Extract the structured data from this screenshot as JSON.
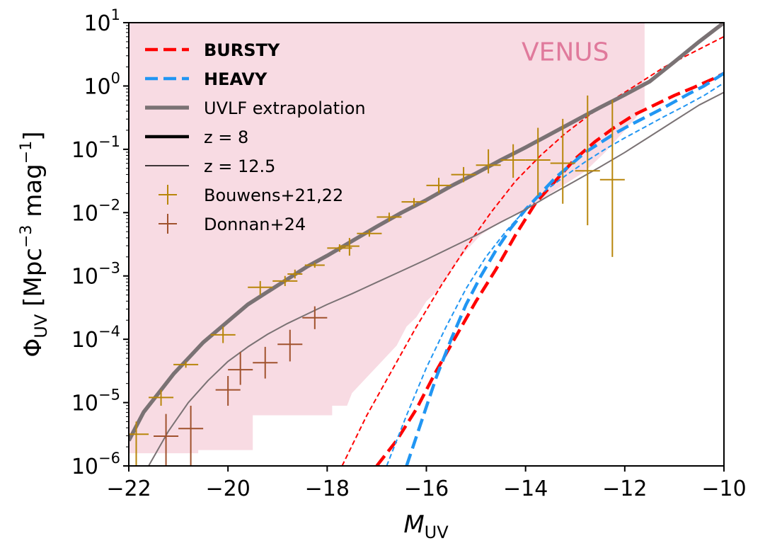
{
  "chart_data": {
    "type": "line",
    "xlabel": "M",
    "xlabel_sub": "UV",
    "ylabel": {
      "prefix": "Φ",
      "prefix_sub": "UV",
      "open": " [Mpc",
      "exp1": "−3",
      "mid": " mag",
      "exp2": "−1",
      "close": "]"
    },
    "xlim": [
      -22,
      -10
    ],
    "ylim_log10": [
      -6,
      1
    ],
    "x_ticks": [
      {
        "value": -22,
        "label": "−22"
      },
      {
        "value": -20,
        "label": "−20"
      },
      {
        "value": -18,
        "label": "−18"
      },
      {
        "value": -16,
        "label": "−16"
      },
      {
        "value": -14,
        "label": "−14"
      },
      {
        "value": -12,
        "label": "−12"
      },
      {
        "value": -10,
        "label": "−10"
      }
    ],
    "y_ticks": [
      {
        "exp": 1,
        "base": "10",
        "sup": "1"
      },
      {
        "exp": 0,
        "base": "10",
        "sup": "0"
      },
      {
        "exp": -1,
        "base": "10",
        "sup": "−1"
      },
      {
        "exp": -2,
        "base": "10",
        "sup": "−2"
      },
      {
        "exp": -3,
        "base": "10",
        "sup": "−3"
      },
      {
        "exp": -4,
        "base": "10",
        "sup": "−4"
      },
      {
        "exp": -5,
        "base": "10",
        "sup": "−5"
      },
      {
        "exp": -6,
        "base": "10",
        "sup": "−6"
      }
    ],
    "annotation": {
      "text": "VENUS",
      "color": "#e07a9c"
    },
    "venus_region": {
      "color": "#f4c7d4",
      "upper_x": [
        -22,
        -11.6
      ],
      "upper_log10": 1,
      "lower_boundary": [
        [
          -22,
          -5.8
        ],
        [
          -20.6,
          -5.8
        ],
        [
          -20.6,
          -5.75
        ],
        [
          -19.5,
          -5.75
        ],
        [
          -19.5,
          -5.2
        ],
        [
          -17.9,
          -5.2
        ],
        [
          -17.9,
          -5.05
        ],
        [
          -17.6,
          -5.05
        ],
        [
          -17.5,
          -4.85
        ],
        [
          -17.2,
          -4.6
        ],
        [
          -16.9,
          -4.35
        ],
        [
          -16.6,
          -4.1
        ],
        [
          -16.4,
          -3.8
        ],
        [
          -16.2,
          -3.65
        ],
        [
          -16.0,
          -3.4
        ],
        [
          -15.8,
          -3.25
        ],
        [
          -15.6,
          -3.05
        ],
        [
          -15.4,
          -2.8
        ],
        [
          -15.2,
          -2.6
        ],
        [
          -14.9,
          -2.35
        ],
        [
          -14.6,
          -2.2
        ],
        [
          -14.3,
          -2.05
        ],
        [
          -14.0,
          -1.95
        ],
        [
          -13.6,
          -1.75
        ],
        [
          -13.2,
          -1.55
        ],
        [
          -12.8,
          -1.35
        ],
        [
          -12.4,
          -1.05
        ],
        [
          -12.0,
          -0.7
        ],
        [
          -11.6,
          -0.35
        ]
      ]
    },
    "series": [
      {
        "name": "BURSTY",
        "legend_bold": true,
        "color": "#ff0000",
        "dashed": true,
        "width": 4.5,
        "x": [
          -17.0,
          -16.6,
          -16.2,
          -15.8,
          -15.4,
          -15.0,
          -14.6,
          -14.2,
          -13.8,
          -13.4,
          -13.0,
          -12.6,
          -12.2,
          -11.8,
          -11.4,
          -11.0,
          -10.6,
          -10.2,
          -10.0
        ],
        "log10": [
          -6.0,
          -5.6,
          -5.1,
          -4.5,
          -3.95,
          -3.4,
          -2.9,
          -2.35,
          -1.85,
          -1.5,
          -1.15,
          -0.88,
          -0.65,
          -0.45,
          -0.3,
          -0.15,
          -0.02,
          0.12,
          0.2
        ]
      },
      {
        "name": "BURSTY z=12.5",
        "legend": false,
        "color": "#ff0000",
        "dashed": true,
        "width": 2,
        "x": [
          -17.7,
          -17.2,
          -16.7,
          -16.2,
          -15.7,
          -15.2,
          -14.7,
          -14.2,
          -13.7,
          -13.2,
          -12.7,
          -12.2,
          -11.7,
          -11.2,
          -10.7,
          -10.2,
          -10.0
        ],
        "log10": [
          -6.0,
          -5.2,
          -4.5,
          -3.8,
          -3.15,
          -2.55,
          -2.0,
          -1.5,
          -1.1,
          -0.75,
          -0.45,
          -0.2,
          0.05,
          0.3,
          0.5,
          0.7,
          0.78
        ]
      },
      {
        "name": "HEAVY",
        "legend_bold": true,
        "color": "#2196f3",
        "dashed": true,
        "width": 4.5,
        "x": [
          -16.4,
          -16.1,
          -15.8,
          -15.5,
          -15.2,
          -14.9,
          -14.6,
          -14.3,
          -14.0,
          -13.7,
          -13.4,
          -13.1,
          -12.8,
          -12.5,
          -12.2,
          -11.9,
          -11.6,
          -11.3,
          -11.0,
          -10.7,
          -10.4,
          -10.0
        ],
        "log10": [
          -6.0,
          -5.3,
          -4.6,
          -4.0,
          -3.45,
          -3.0,
          -2.6,
          -2.25,
          -1.95,
          -1.7,
          -1.45,
          -1.25,
          -1.05,
          -0.9,
          -0.75,
          -0.62,
          -0.5,
          -0.38,
          -0.25,
          -0.12,
          0.0,
          0.2
        ]
      },
      {
        "name": "HEAVY z=12.5",
        "legend": false,
        "color": "#2196f3",
        "dashed": true,
        "width": 2,
        "x": [
          -16.8,
          -16.4,
          -16.0,
          -15.6,
          -15.2,
          -14.8,
          -14.4,
          -14.0,
          -13.6,
          -13.2,
          -12.8,
          -12.4,
          -12.0,
          -11.6,
          -11.2,
          -10.8,
          -10.4,
          -10.0
        ],
        "log10": [
          -6.0,
          -5.2,
          -4.45,
          -3.8,
          -3.2,
          -2.7,
          -2.3,
          -1.95,
          -1.65,
          -1.42,
          -1.2,
          -1.0,
          -0.82,
          -0.65,
          -0.48,
          -0.32,
          -0.15,
          0.05
        ]
      },
      {
        "name": "UVLF extrapolation",
        "legend": true,
        "color": "#7a7274",
        "dashed": false,
        "width": 5.5,
        "x": [
          -22.0,
          -21.7,
          -21.4,
          -21.1,
          -20.8,
          -20.5,
          -20.2,
          -19.9,
          -19.6,
          -19.2,
          -18.8,
          -18.4,
          -18.0,
          -17.5,
          -17.0,
          -16.5,
          -16.0,
          -15.5,
          -15.0,
          -14.5,
          -14.0,
          -13.5,
          -13.0,
          -12.5,
          -12.0,
          -11.5,
          -11.0,
          -10.5,
          -10.0
        ],
        "log10": [
          -5.6,
          -5.15,
          -4.85,
          -4.55,
          -4.3,
          -4.05,
          -3.85,
          -3.65,
          -3.45,
          -3.25,
          -3.05,
          -2.85,
          -2.68,
          -2.45,
          -2.22,
          -2.0,
          -1.8,
          -1.58,
          -1.38,
          -1.17,
          -0.97,
          -0.76,
          -0.55,
          -0.34,
          -0.14,
          0.07,
          0.38,
          0.7,
          1.0
        ]
      },
      {
        "name": "UVLF extrapolation z=12.5",
        "legend": false,
        "color": "#7a7274",
        "dashed": false,
        "width": 2,
        "x": [
          -21.6,
          -21.2,
          -20.8,
          -20.4,
          -20.0,
          -19.6,
          -19.2,
          -18.8,
          -18.4,
          -18.0,
          -17.5,
          -17.0,
          -16.5,
          -16.0,
          -15.5,
          -15.0,
          -14.5,
          -14.0,
          -13.5,
          -13.0,
          -12.5,
          -12.0,
          -11.5,
          -11.0,
          -10.5,
          -10.0
        ],
        "log10": [
          -6.0,
          -5.45,
          -5.0,
          -4.65,
          -4.35,
          -4.12,
          -3.92,
          -3.75,
          -3.6,
          -3.45,
          -3.28,
          -3.1,
          -2.92,
          -2.74,
          -2.55,
          -2.36,
          -2.15,
          -1.95,
          -1.72,
          -1.5,
          -1.28,
          -1.05,
          -0.8,
          -0.55,
          -0.3,
          -0.1
        ]
      }
    ],
    "style_legend": [
      {
        "label": "z = 8",
        "color": "#000000",
        "width": 4.5
      },
      {
        "label": "z = 12.5",
        "color": "#000000",
        "width": 1.5
      }
    ],
    "points": [
      {
        "name": "Bouwens+21,22",
        "color": "#b8860b",
        "data": [
          [
            -21.85,
            -5.5,
            0.25,
            -5.3,
            -6.0
          ],
          [
            -21.35,
            -4.92,
            0.25,
            -4.8,
            -5.05
          ],
          [
            -20.85,
            -4.4,
            0.25,
            -4.35,
            -4.45
          ],
          [
            -20.1,
            -3.93,
            0.25,
            -3.8,
            -4.06
          ],
          [
            -19.35,
            -3.18,
            0.25,
            -3.08,
            -3.3
          ],
          [
            -18.85,
            -3.08,
            0.25,
            -3.0,
            -3.16
          ],
          [
            -18.65,
            -2.97,
            0.15,
            -2.9,
            -3.04
          ],
          [
            -18.25,
            -2.83,
            0.2,
            -2.79,
            -2.87
          ],
          [
            -17.75,
            -2.56,
            0.25,
            -2.5,
            -2.62
          ],
          [
            -17.55,
            -2.53,
            0.2,
            -2.4,
            -2.68
          ],
          [
            -17.15,
            -2.33,
            0.25,
            -2.28,
            -2.38
          ],
          [
            -16.75,
            -2.07,
            0.25,
            -2.0,
            -2.14
          ],
          [
            -16.25,
            -1.83,
            0.25,
            -1.77,
            -1.9
          ],
          [
            -15.75,
            -1.57,
            0.25,
            -1.45,
            -1.69
          ],
          [
            -15.25,
            -1.4,
            0.25,
            -1.28,
            -1.52
          ],
          [
            -14.75,
            -1.25,
            0.25,
            -1.0,
            -1.38
          ],
          [
            -14.25,
            -1.17,
            0.25,
            -0.92,
            -1.45
          ],
          [
            -13.75,
            -1.17,
            0.25,
            -0.66,
            -1.73
          ],
          [
            -13.25,
            -1.22,
            0.25,
            -0.52,
            -1.86
          ],
          [
            -12.75,
            -1.34,
            0.25,
            -0.15,
            -2.2
          ],
          [
            -12.25,
            -1.48,
            0.25,
            -0.22,
            -2.7
          ]
        ]
      },
      {
        "name": "Donnan+24",
        "color": "#a0522d",
        "data": [
          [
            -21.25,
            -5.53,
            0.25,
            -5.18,
            -6.0
          ],
          [
            -20.75,
            -5.41,
            0.25,
            -5.05,
            -6.0
          ],
          [
            -20.0,
            -4.8,
            0.25,
            -4.58,
            -5.05
          ],
          [
            -19.75,
            -4.48,
            0.25,
            -4.2,
            -4.72
          ],
          [
            -19.25,
            -4.37,
            0.25,
            -4.12,
            -4.62
          ],
          [
            -18.75,
            -4.08,
            0.25,
            -3.85,
            -4.35
          ],
          [
            -18.25,
            -3.66,
            0.25,
            -3.48,
            -3.84
          ]
        ]
      }
    ]
  }
}
